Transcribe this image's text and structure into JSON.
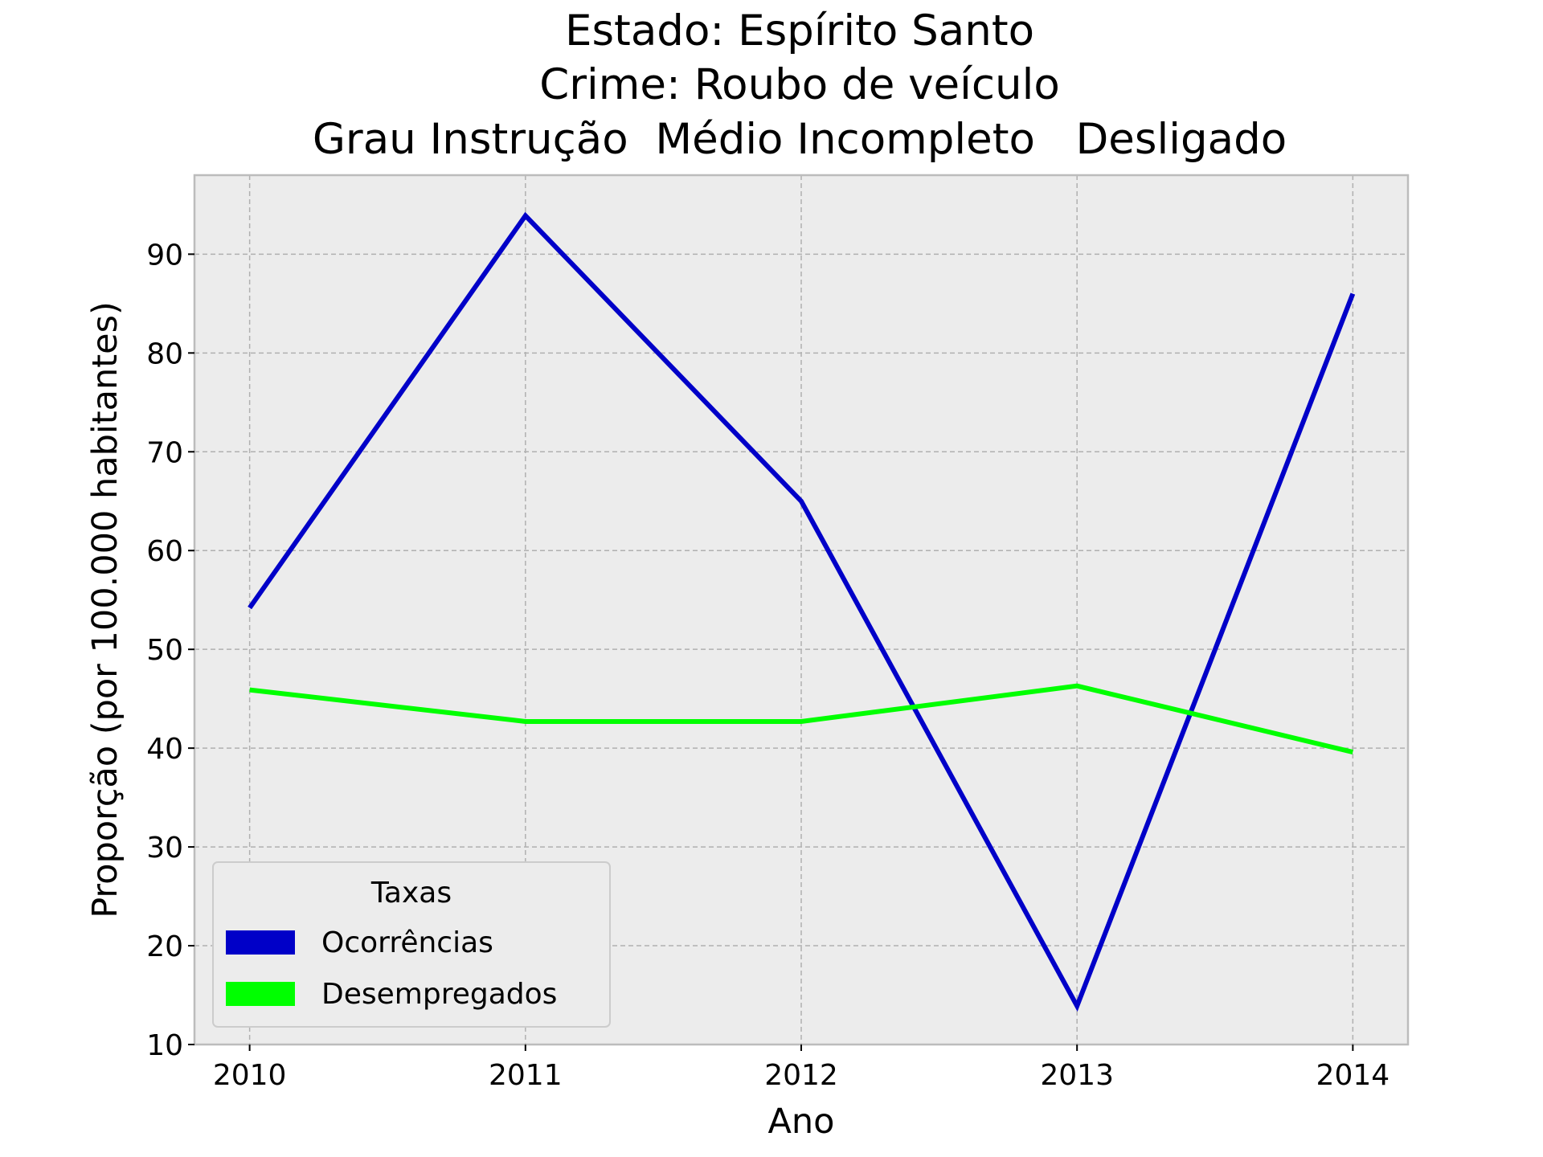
{
  "chart_data": {
    "type": "line",
    "title_lines": [
      "Estado: Espírito Santo",
      "Crime: Roubo de veículo",
      "Grau Instrução  Médio Incompleto   Desligado"
    ],
    "xlabel": "Ano",
    "ylabel": "Proporção (por 100.000 habitantes)",
    "x": [
      2010,
      2011,
      2012,
      2013,
      2014
    ],
    "x_tick_labels": [
      "2010",
      "2011",
      "2012",
      "2013",
      "2014"
    ],
    "xlim": [
      2009.8,
      2014.2
    ],
    "ylim": [
      10,
      98
    ],
    "y_ticks": [
      10,
      20,
      30,
      40,
      50,
      60,
      70,
      80,
      90
    ],
    "y_tick_labels": [
      "10",
      "20",
      "30",
      "40",
      "50",
      "60",
      "70",
      "80",
      "90"
    ],
    "grid": true,
    "legend": {
      "title": "Taxas",
      "placement": "lower-left"
    },
    "series": [
      {
        "name": "Ocorrências",
        "color": "#0000c8",
        "values": [
          54.2,
          93.9,
          65.0,
          13.9,
          86.0
        ]
      },
      {
        "name": "Desempregados",
        "color": "#00ff00",
        "values": [
          45.9,
          42.7,
          42.7,
          46.3,
          39.6
        ]
      }
    ],
    "colors": {
      "plot_background": "#ececec",
      "grid": "#b0b0b0",
      "frame": "#bcbcbc"
    }
  }
}
